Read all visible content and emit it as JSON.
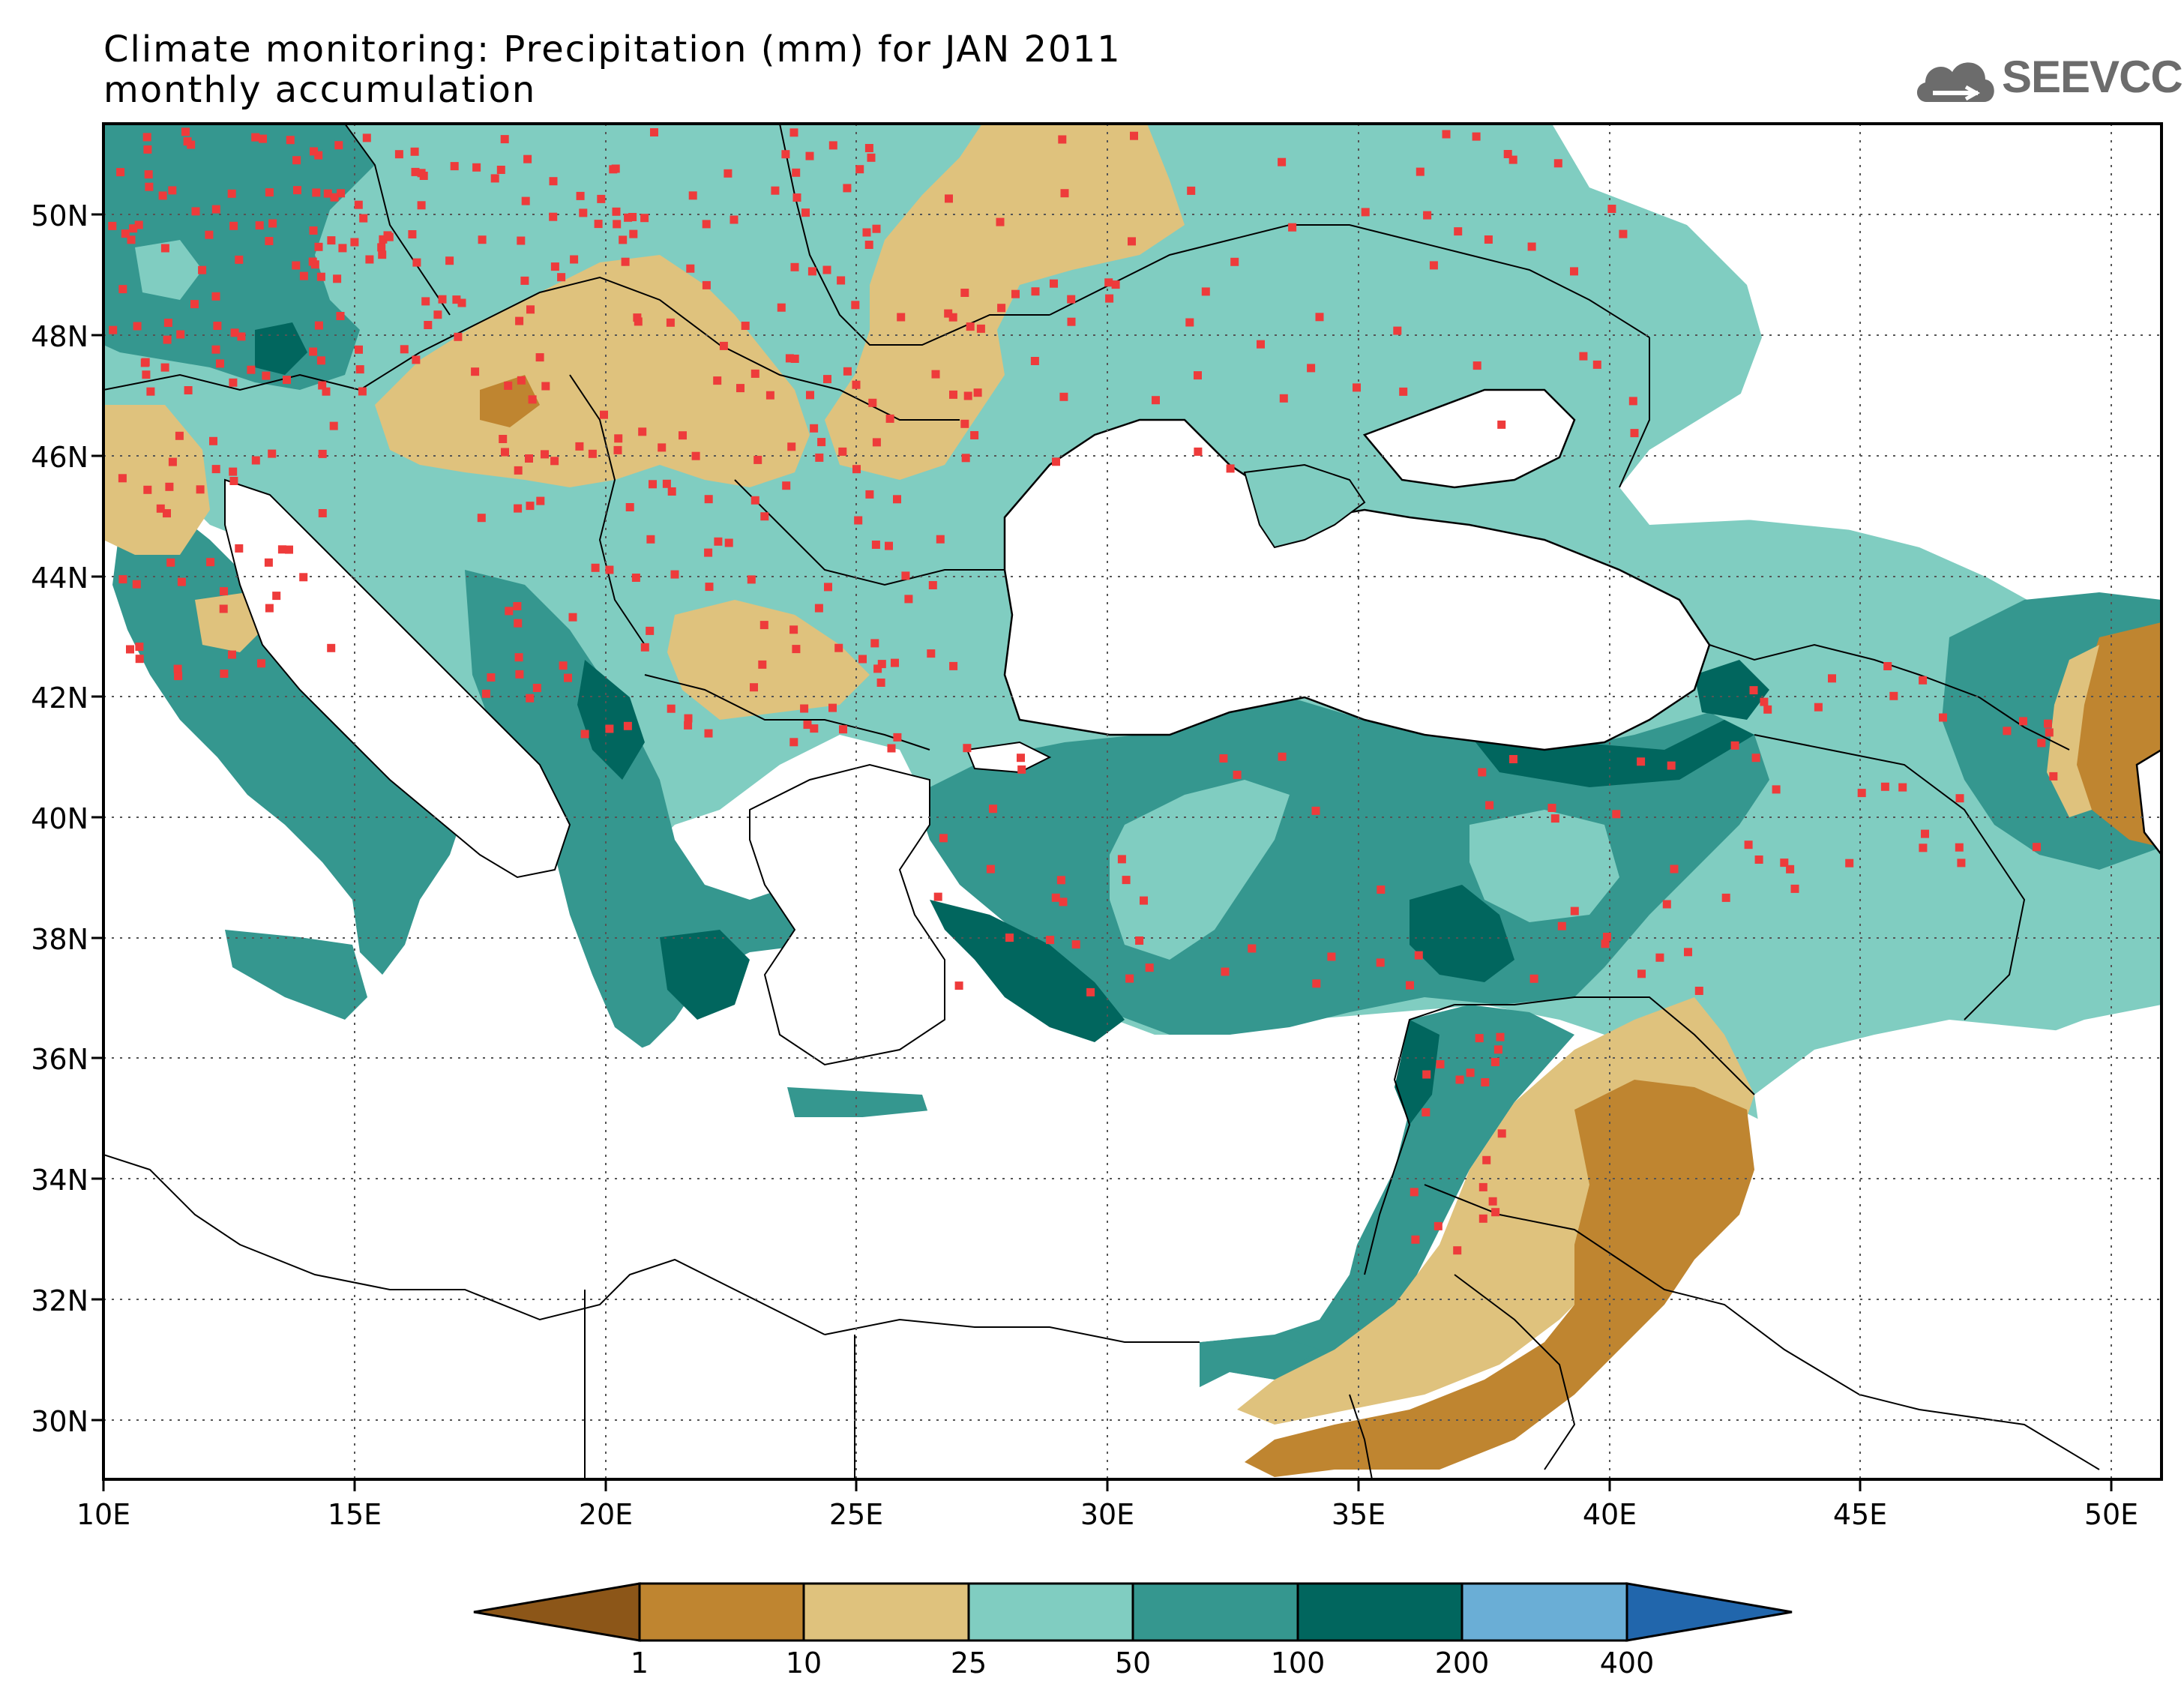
{
  "header": {
    "title_line1": "Climate monitoring: Precipitation (mm) for JAN 2011",
    "title_line2": "monthly accumulation"
  },
  "logo": {
    "text": "SEEVCCC",
    "icon": "cloud-icon"
  },
  "map": {
    "type": "filled-contour-map",
    "lon_range": [
      10,
      51
    ],
    "lat_range": [
      29,
      51.5
    ],
    "lat_labels": [
      "50N",
      "48N",
      "46N",
      "44N",
      "42N",
      "40N",
      "38N",
      "36N",
      "34N",
      "32N",
      "30N"
    ],
    "lon_labels": [
      "10E",
      "15E",
      "20E",
      "25E",
      "30E",
      "35E",
      "40E",
      "45E",
      "50E"
    ],
    "grid": "dotted",
    "station_marker_color": "#ee3b3b",
    "colors": {
      "very_dry": "#8c5618",
      "dry": "#bf8530",
      "below": "#dfc27d",
      "moderate": "#80cdc1",
      "wet": "#35978f",
      "very_wet": "#01665e",
      "extreme": "#6aaed6",
      "max": "#2166ac"
    }
  },
  "colorbar": {
    "levels": [
      "1",
      "10",
      "25",
      "50",
      "100",
      "200",
      "400"
    ],
    "colors": [
      "#8c5618",
      "#bf8530",
      "#dfc27d",
      "#80cdc1",
      "#35978f",
      "#01665e",
      "#6aaed6",
      "#2166ac"
    ]
  }
}
